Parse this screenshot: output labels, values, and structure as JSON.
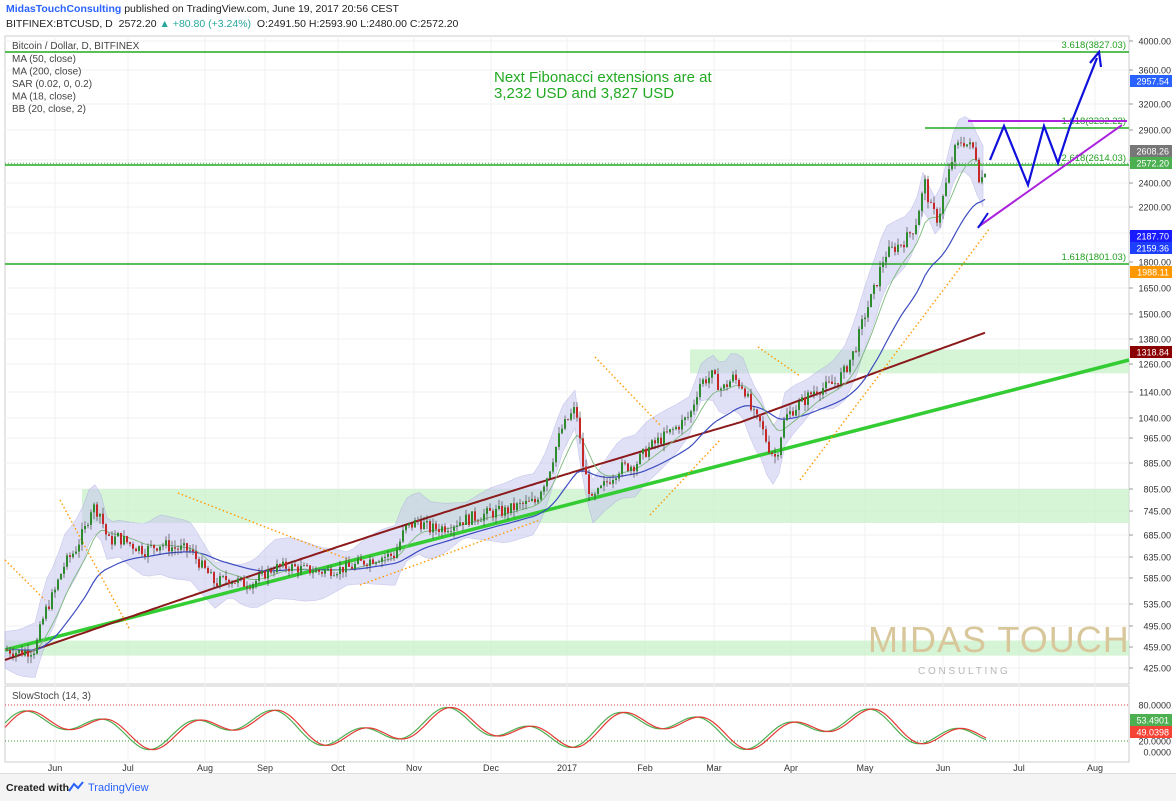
{
  "header": {
    "username": "MidasTouchConsulting",
    "published": " published on TradingView.com, June 19, 2017 20:56 CEST",
    "symbol": "BITFINEX:BTCUSD, D",
    "last": "2572.20",
    "change": "▲ +80.80 (+3.24%)",
    "o_label": "O:",
    "o": "2491.50",
    "h_label": "H:",
    "h": "2593.90",
    "l_label": "L:",
    "l": "2480.00",
    "c_label": "C:",
    "c": "2572.20"
  },
  "legend": {
    "title": "Bitcoin / Dollar, D, BITFINEX",
    "items": [
      "MA (50, close)",
      "MA (200, close)",
      "SAR (0.02, 0, 0.2)",
      "MA (18, close)",
      "BB (20, close, 2)"
    ]
  },
  "annotation": {
    "line1": "Next Fibonacci extensions are at",
    "line2": "3,232 USD and 3,827 USD",
    "color": "#22aa22"
  },
  "fib_labels": [
    "3.618(3827.03)",
    "1.618(3232.22)",
    "2.618(2614.03)",
    "1.618(1801.03)"
  ],
  "price_axis": [
    "4000.00",
    "3600.00",
    "3200.00",
    "2900.00",
    "2600.00",
    "2400.00",
    "2200.00",
    "2000.00",
    "1800.00",
    "1650.00",
    "1500.00",
    "1380.00",
    "1260.00",
    "1140.00",
    "1040.00",
    "965.00",
    "885.00",
    "805.00",
    "745.00",
    "685.00",
    "635.00",
    "585.00",
    "535.00",
    "495.00",
    "459.00",
    "425.00"
  ],
  "price_badges": [
    {
      "text": "2957.54",
      "bg": "#2962ff"
    },
    {
      "text": "2608.26",
      "bg": "#777777"
    },
    {
      "text": "2572.20",
      "bg": "#4caf50"
    },
    {
      "text": "2187.70",
      "bg": "#1a1aff"
    },
    {
      "text": "2159.36",
      "bg": "#1f3fff"
    },
    {
      "text": "1988.11",
      "bg": "#ff9800"
    },
    {
      "text": "1318.84",
      "bg": "#8b0000"
    }
  ],
  "time_axis": [
    "Jun",
    "Jul",
    "Aug",
    "Sep",
    "Oct",
    "Nov",
    "Dec",
    "2017",
    "Feb",
    "Mar",
    "Apr",
    "May",
    "Jun",
    "Jul",
    "Aug"
  ],
  "osc": {
    "title": "SlowStoch (14, 3)",
    "axis": [
      "80.0000",
      "20.0000",
      "0.0000"
    ],
    "badges": [
      {
        "text": "53.4901",
        "bg": "#4caf50"
      },
      {
        "text": "49.0398",
        "bg": "#f44336"
      }
    ]
  },
  "watermark": {
    "main": "MIDAS TOUCH",
    "sub": "C O N S U L T I N G"
  },
  "footer": {
    "created": "Created with",
    "brand": "TradingView"
  },
  "colors": {
    "fib": "#22aa22",
    "zone": "#c8f0c8",
    "trend": "#33cc33",
    "ma200": "#8b1a1a",
    "ma50": "#3b4cc0",
    "sar": "#ff9900",
    "bb": "#9999dd",
    "pattern_blue": "#1010dd",
    "pattern_purple": "#aa22dd"
  },
  "chart_data": {
    "type": "line",
    "title": "Bitcoin / Dollar, D, BITFINEX",
    "ylim": [
      425,
      4000
    ],
    "log_scale": true,
    "x": [
      "Jun",
      "Jul",
      "Aug",
      "Sep",
      "Oct",
      "Nov",
      "Dec",
      "2017",
      "Feb",
      "Mar",
      "Apr",
      "May",
      "Jun"
    ],
    "series": [
      {
        "name": "BTCUSD close",
        "values": [
          530,
          670,
          575,
          600,
          640,
          730,
          770,
          950,
          1010,
          1210,
          1080,
          1750,
          2572
        ]
      }
    ],
    "fibonacci_levels": [
      3827.03,
      3232.22,
      2614.03,
      1801.03
    ]
  }
}
